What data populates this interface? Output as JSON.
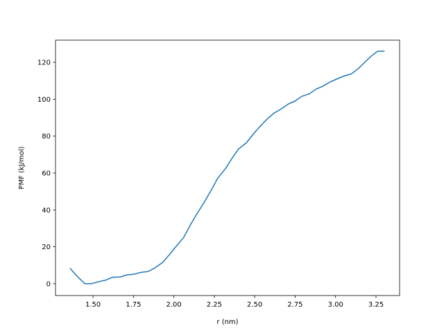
{
  "chart_data": {
    "type": "line",
    "title": "",
    "xlabel": "r (nm)",
    "ylabel": "PMF (kJ/mol)",
    "xlim": [
      1.268,
      3.396
    ],
    "ylim": [
      -6.4,
      132
    ],
    "xticks": [
      1.5,
      1.75,
      2.0,
      2.25,
      2.5,
      2.75,
      3.0,
      3.25
    ],
    "xtick_labels": [
      "1.50",
      "1.75",
      "2.00",
      "2.25",
      "2.50",
      "2.75",
      "3.00",
      "3.25"
    ],
    "yticks": [
      0,
      20,
      40,
      60,
      80,
      100,
      120
    ],
    "ytick_labels": [
      "0",
      "20",
      "40",
      "60",
      "80",
      "100",
      "120"
    ],
    "grid": false,
    "color": "#1f77b4",
    "x": [
      1.36,
      1.41,
      1.45,
      1.49,
      1.54,
      1.58,
      1.62,
      1.67,
      1.71,
      1.75,
      1.8,
      1.84,
      1.88,
      1.93,
      1.97,
      2.01,
      2.06,
      2.1,
      2.14,
      2.19,
      2.23,
      2.27,
      2.32,
      2.36,
      2.4,
      2.45,
      2.49,
      2.53,
      2.58,
      2.62,
      2.66,
      2.71,
      2.75,
      2.79,
      2.84,
      2.88,
      2.92,
      2.97,
      3.01,
      3.05,
      3.1,
      3.14,
      3.18,
      3.22,
      3.26,
      3.3
    ],
    "y": [
      8.2,
      3.3,
      0.0,
      0.0,
      1.2,
      2.0,
      3.5,
      3.7,
      4.8,
      5.1,
      6.2,
      6.6,
      8.4,
      11.5,
      15.5,
      19.8,
      25.0,
      31.5,
      37.5,
      44.5,
      50.5,
      57.0,
      62.5,
      68.0,
      73.0,
      76.5,
      81.0,
      85.0,
      89.5,
      92.5,
      94.5,
      97.5,
      99.0,
      101.5,
      103.0,
      105.5,
      107.0,
      109.5,
      111.0,
      112.5,
      113.8,
      116.5,
      120.0,
      123.3,
      126.0,
      126.0
    ]
  }
}
